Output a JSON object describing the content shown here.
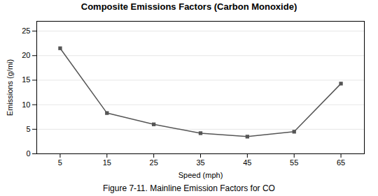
{
  "chart_data": {
    "type": "line",
    "title": "Composite Emissions Factors (Carbon Monoxide)",
    "xlabel": "Speed (mph)",
    "ylabel": "Emissions (g/mi)",
    "caption": "Figure 7-11. Mainline Emission Factors for CO",
    "x": [
      5,
      15,
      25,
      35,
      45,
      55,
      65
    ],
    "values": [
      21.5,
      8.3,
      6.0,
      4.2,
      3.5,
      4.5,
      14.3
    ],
    "xlim": [
      0,
      70
    ],
    "ylim": [
      0,
      27
    ],
    "xticks": [
      5,
      15,
      25,
      35,
      45,
      55,
      65
    ],
    "yticks": [
      0,
      5,
      10,
      15,
      20,
      25
    ],
    "grid": true,
    "color": "#555555",
    "marker": "square"
  }
}
